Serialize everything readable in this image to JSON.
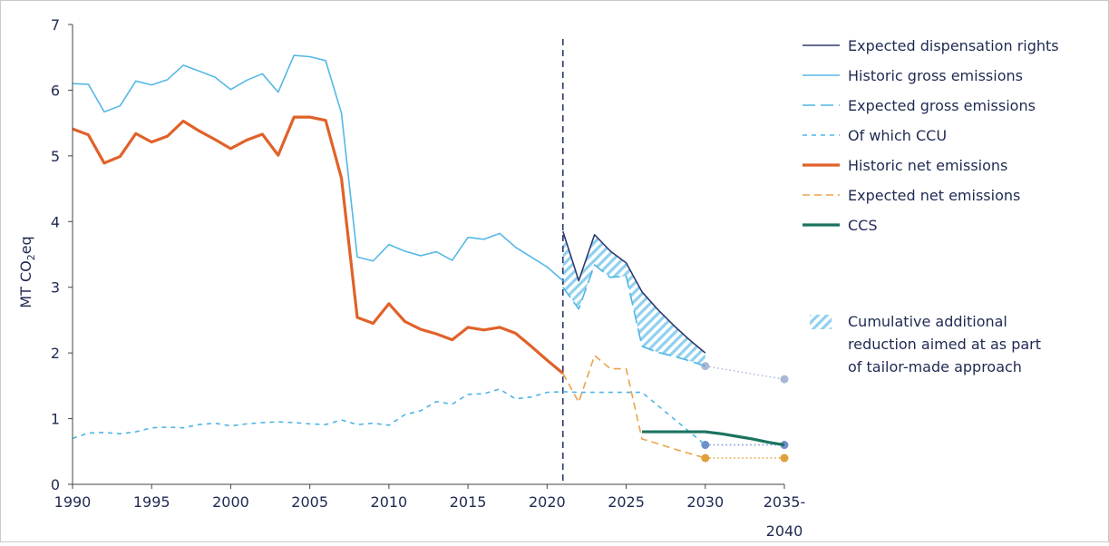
{
  "chart_data": {
    "type": "line",
    "title": "",
    "xlabel": "",
    "ylabel_main": "MT CO",
    "ylabel_sub": "2",
    "ylabel_tail": "eq",
    "ylim": [
      0,
      7
    ],
    "y_ticks": [
      "0",
      "1",
      "2",
      "3",
      "4",
      "5",
      "6",
      "7"
    ],
    "x_ticks": [
      {
        "x": 1990,
        "label": "1990"
      },
      {
        "x": 1995,
        "label": "1995"
      },
      {
        "x": 2000,
        "label": "2000"
      },
      {
        "x": 2005,
        "label": "2005"
      },
      {
        "x": 2010,
        "label": "2010"
      },
      {
        "x": 2015,
        "label": "2015"
      },
      {
        "x": 2020,
        "label": "2020"
      },
      {
        "x": 2025,
        "label": "2025"
      },
      {
        "x": 2030,
        "label": "2030"
      },
      {
        "x": 2035,
        "label": "2035-"
      }
    ],
    "x_tick_extra": "2040",
    "vline_x": 2021,
    "colors": {
      "expected_rights": "#2e3a6e",
      "historic_gross": "#55b8e6",
      "expected_gross": "#4fb5e3",
      "ccu": "#4fb5e3",
      "historic_net": "#e0622a",
      "expected_net": "#e8a44a",
      "ccs": "#1b7360",
      "hatch": "#8fd0ef",
      "vline": "#2e3a6e",
      "target_gross_dot": "#a9b8d6",
      "target_ccu_dot": "#6f8fca",
      "target_net_dot": "#e0a03a"
    },
    "series": [
      {
        "name": "Expected dispensation rights",
        "key": "expected_rights",
        "style": "solid",
        "x": [
          2021,
          2022,
          2023,
          2024,
          2025,
          2026,
          2027,
          2028,
          2029,
          2030
        ],
        "y": [
          3.85,
          3.1,
          3.8,
          3.55,
          3.37,
          2.93,
          2.66,
          2.42,
          2.2,
          2.0
        ]
      },
      {
        "name": "Historic gross emissions",
        "key": "historic_gross",
        "style": "solid",
        "x": [
          1990,
          1991,
          1992,
          1993,
          1994,
          1995,
          1996,
          1997,
          1998,
          1999,
          2000,
          2001,
          2002,
          2003,
          2004,
          2005,
          2006,
          2007,
          2008,
          2009,
          2010,
          2011,
          2012,
          2013,
          2014,
          2015,
          2016,
          2017,
          2018,
          2019,
          2020,
          2021
        ],
        "y": [
          6.1,
          6.09,
          5.67,
          5.76,
          6.14,
          6.08,
          6.16,
          6.38,
          6.29,
          6.2,
          6.01,
          6.15,
          6.25,
          5.97,
          6.53,
          6.51,
          6.45,
          5.65,
          3.46,
          3.4,
          3.65,
          3.55,
          3.48,
          3.54,
          3.41,
          3.76,
          3.73,
          3.82,
          3.61,
          3.46,
          3.31,
          3.1
        ]
      },
      {
        "name": "Expected gross emissions",
        "key": "expected_gross",
        "style": "longdash",
        "x": [
          2021,
          2022,
          2023,
          2024,
          2025,
          2026,
          2027,
          2028,
          2029,
          2030
        ],
        "y": [
          3.0,
          2.67,
          3.34,
          3.15,
          3.17,
          2.1,
          2.01,
          1.95,
          1.88,
          1.8
        ]
      },
      {
        "name": "Of which CCU",
        "key": "ccu",
        "style": "shortdash",
        "x": [
          1990,
          1991,
          1992,
          1993,
          1994,
          1995,
          1996,
          1997,
          1998,
          1999,
          2000,
          2001,
          2002,
          2003,
          2004,
          2005,
          2006,
          2007,
          2008,
          2009,
          2010,
          2011,
          2012,
          2013,
          2014,
          2015,
          2016,
          2017,
          2018,
          2019,
          2020,
          2021,
          2022,
          2023,
          2024,
          2025,
          2026,
          2027,
          2028,
          2029,
          2030
        ],
        "y": [
          0.7,
          0.78,
          0.79,
          0.77,
          0.8,
          0.86,
          0.87,
          0.86,
          0.91,
          0.93,
          0.89,
          0.92,
          0.94,
          0.95,
          0.94,
          0.92,
          0.91,
          0.98,
          0.91,
          0.93,
          0.9,
          1.06,
          1.12,
          1.26,
          1.22,
          1.37,
          1.38,
          1.45,
          1.3,
          1.33,
          1.4,
          1.41,
          1.4,
          1.4,
          1.4,
          1.4,
          1.4,
          1.2,
          1.0,
          0.8,
          0.6
        ]
      },
      {
        "name": "Historic net emissions",
        "key": "historic_net",
        "style": "solid-thick",
        "x": [
          1990,
          1991,
          1992,
          1993,
          1994,
          1995,
          1996,
          1997,
          1998,
          1999,
          2000,
          2001,
          2002,
          2003,
          2004,
          2005,
          2006,
          2007,
          2008,
          2009,
          2010,
          2011,
          2012,
          2013,
          2014,
          2015,
          2016,
          2017,
          2018,
          2019,
          2020,
          2021
        ],
        "y": [
          5.41,
          5.32,
          4.89,
          4.99,
          5.34,
          5.21,
          5.3,
          5.53,
          5.38,
          5.25,
          5.11,
          5.24,
          5.33,
          5.01,
          5.59,
          5.59,
          5.54,
          4.66,
          2.54,
          2.45,
          2.75,
          2.48,
          2.36,
          2.29,
          2.2,
          2.39,
          2.35,
          2.39,
          2.3,
          2.1,
          1.89,
          1.69
        ]
      },
      {
        "name": "Expected net emissions",
        "key": "expected_net",
        "style": "dash",
        "x": [
          2021,
          2022,
          2023,
          2024,
          2025,
          2026,
          2027,
          2028,
          2029,
          2030
        ],
        "y": [
          1.69,
          1.25,
          1.96,
          1.76,
          1.76,
          0.69,
          0.62,
          0.54,
          0.47,
          0.4
        ]
      },
      {
        "name": "CCS",
        "key": "ccs",
        "style": "solid-thick",
        "x": [
          2026,
          2027,
          2028,
          2029,
          2030,
          2031,
          2032,
          2033,
          2034,
          2035
        ],
        "y": [
          0.8,
          0.8,
          0.8,
          0.8,
          0.8,
          0.77,
          0.73,
          0.69,
          0.64,
          0.6
        ]
      }
    ],
    "targets": [
      {
        "key": "target_gross_dot",
        "x": [
          2030,
          2035
        ],
        "y": [
          1.8,
          1.6
        ]
      },
      {
        "key": "target_ccu_dot",
        "x": [
          2030,
          2035
        ],
        "y": [
          0.6,
          0.6
        ]
      },
      {
        "key": "target_net_dot",
        "x": [
          2030,
          2035
        ],
        "y": [
          0.4,
          0.4
        ]
      }
    ],
    "hatch_area": {
      "name": "Cumulative additional reduction aimed at as part of tailor-made approach",
      "x": [
        2021,
        2022,
        2023,
        2024,
        2025,
        2026,
        2027,
        2028,
        2029,
        2030
      ],
      "upper": [
        3.85,
        3.1,
        3.8,
        3.55,
        3.37,
        2.93,
        2.66,
        2.42,
        2.2,
        2.0
      ],
      "lower": [
        3.0,
        2.67,
        3.34,
        3.15,
        3.17,
        2.1,
        2.01,
        1.95,
        1.88,
        1.8
      ]
    },
    "legend": {
      "placement": "right",
      "items": [
        {
          "key": "expected_rights",
          "style": "solid",
          "label": "Expected dispensation rights"
        },
        {
          "key": "historic_gross",
          "style": "solid",
          "label": "Historic gross emissions"
        },
        {
          "key": "expected_gross",
          "style": "longdash",
          "label": "Expected gross emissions"
        },
        {
          "key": "ccu",
          "style": "shortdash",
          "label": "Of which CCU"
        },
        {
          "key": "historic_net",
          "style": "solid-thick",
          "label": "Historic net emissions"
        },
        {
          "key": "expected_net",
          "style": "dash",
          "label": "Expected net emissions"
        },
        {
          "key": "ccs",
          "style": "solid-thick",
          "label": "CCS"
        }
      ],
      "hatch_label_lines": [
        "Cumulative additional",
        "reduction aimed at as part",
        "of tailor-made approach"
      ]
    }
  }
}
